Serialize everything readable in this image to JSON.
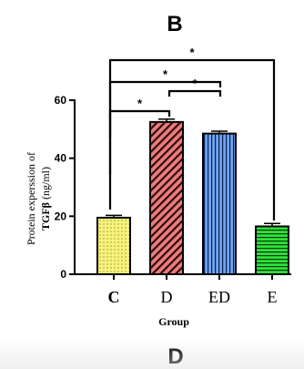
{
  "panel_top": "B",
  "panel_bottom": "D",
  "chart_data": {
    "type": "bar",
    "categories": [
      "C",
      "D",
      "ED",
      "E"
    ],
    "values": [
      19.5,
      52.5,
      48.5,
      16.5
    ],
    "errors": [
      0.8,
      1.0,
      0.8,
      1.0
    ],
    "xlabel": "Group",
    "ylabel_line1": "Protein experssion of",
    "ylabel_line2_bold": "TGFβ",
    "ylabel_line2_rest": " (ng/ml)",
    "ylim": [
      0,
      60
    ],
    "yticks": [
      0,
      20,
      40,
      60
    ],
    "grid": false,
    "bar_colors": [
      "#f7f27a",
      "#ef7b7b",
      "#6fa6f2",
      "#2ee23a"
    ],
    "bar_patterns": [
      "dots",
      "diagonal",
      "vertical",
      "horizontal"
    ],
    "significance": [
      {
        "from": "C",
        "to": "D",
        "label": "*"
      },
      {
        "from": "D",
        "to": "ED",
        "label": "*"
      },
      {
        "from": "C",
        "to": "ED",
        "label": "*"
      },
      {
        "from": "C",
        "to": "E",
        "label": "*"
      }
    ]
  }
}
